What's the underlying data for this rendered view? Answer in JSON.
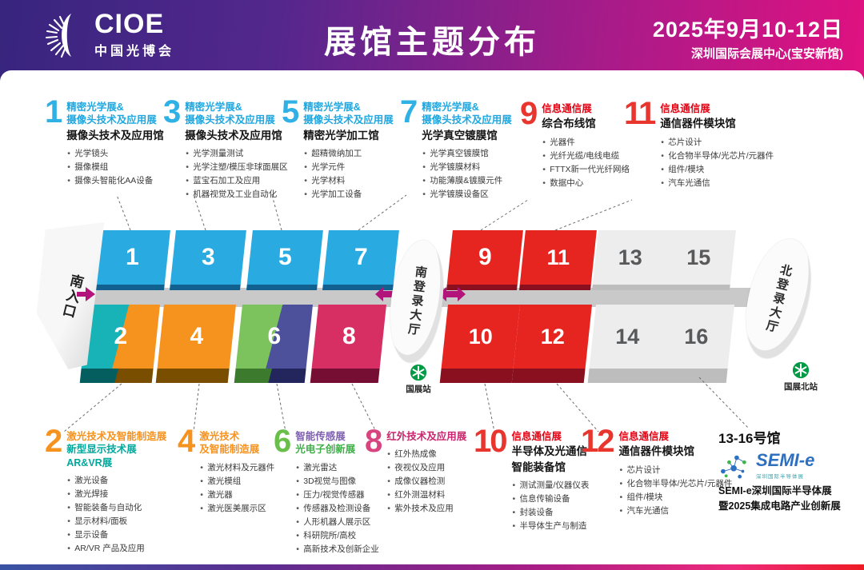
{
  "header": {
    "logo": {
      "brand": "CIOE",
      "brand_cn": "中国光博会"
    },
    "title": "展馆主题分布",
    "date": "2025年9月10-12日",
    "venue": "深圳国际会展中心(宝安新馆)"
  },
  "sections": {
    "top": [
      {
        "num": "1",
        "num_color": "#2fb1e5",
        "header_lines": [
          {
            "text": "精密光学展&",
            "color": "#1ea7e0"
          },
          {
            "text": "摄像头技术及应用展",
            "color": "#1ea7e0"
          }
        ],
        "hall_lines": [
          "摄像头技术及应用馆"
        ],
        "bullets": [
          "光学镜头",
          "摄像模组",
          "摄像头智能化AA设备"
        ]
      },
      {
        "num": "3",
        "num_color": "#2fb1e5",
        "header_lines": [
          {
            "text": "精密光学展&",
            "color": "#1ea7e0"
          },
          {
            "text": "摄像头技术及应用展",
            "color": "#1ea7e0"
          }
        ],
        "hall_lines": [
          "摄像头技术及应用馆"
        ],
        "bullets": [
          "光学测量测试",
          "光学注塑/模压非球面展区",
          "蓝宝石加工及应用",
          "机器视觉及工业自动化"
        ]
      },
      {
        "num": "5",
        "num_color": "#2fb1e5",
        "header_lines": [
          {
            "text": "精密光学展&",
            "color": "#1ea7e0"
          },
          {
            "text": "摄像头技术及应用展",
            "color": "#1ea7e0"
          }
        ],
        "hall_lines": [
          "精密光学加工馆"
        ],
        "bullets": [
          "超精微纳加工",
          "光学元件",
          "光学材料",
          "光学加工设备"
        ]
      },
      {
        "num": "7",
        "num_color": "#2fb1e5",
        "header_lines": [
          {
            "text": "精密光学展&",
            "color": "#1ea7e0"
          },
          {
            "text": "摄像头技术及应用展",
            "color": "#1ea7e0"
          }
        ],
        "hall_lines": [
          "光学真空镀膜馆"
        ],
        "bullets": [
          "光学真空镀膜馆",
          "光学镀膜材料",
          "功能薄膜&镀膜元件",
          "光学镀膜设备区"
        ]
      },
      {
        "num": "9",
        "num_color": "#e8352e",
        "header_lines": [
          {
            "text": "信息通信展",
            "color": "#e60012"
          }
        ],
        "hall_lines": [
          "综合布线馆"
        ],
        "bullets": [
          "光器件",
          "光纤光缆/电线电缆",
          "FTTX新一代光纤网络",
          "数据中心"
        ]
      },
      {
        "num": "11",
        "num_color": "#e8352e",
        "header_lines": [
          {
            "text": "信息通信展",
            "color": "#e60012"
          }
        ],
        "hall_lines": [
          "通信器件模块馆"
        ],
        "bullets": [
          "芯片设计",
          "化合物半导体/光芯片/元器件",
          "组件/模块",
          "汽车光通信"
        ]
      }
    ],
    "bottom": [
      {
        "num": "2",
        "num_color": "#f6921e",
        "header_lines": [
          {
            "text": "激光技术及智能制造展",
            "color": "#f6921e"
          },
          {
            "text": "新型显示技术展",
            "color": "#00a99d"
          },
          {
            "text": "AR&VR展",
            "color": "#00a99d"
          }
        ],
        "hall_lines": [],
        "bullets": [
          "激光设备",
          "激光焊接",
          "智能装备与自动化",
          "显示材料/面板",
          "显示设备",
          "AR/VR 产品及应用"
        ]
      },
      {
        "num": "4",
        "num_color": "#f6921e",
        "header_lines": [
          {
            "text": "激光技术",
            "color": "#f6921e"
          },
          {
            "text": "及智能制造展",
            "color": "#f6921e"
          }
        ],
        "hall_lines": [],
        "bullets": [
          "激光材料及元器件",
          "激光模组",
          "激光器",
          "激光医美展示区"
        ]
      },
      {
        "num": "6",
        "num_color": "#6abf4b",
        "header_lines": [
          {
            "text": "智能传感展",
            "color": "#7d5fae"
          },
          {
            "text": "光电子创新展",
            "color": "#3fae49"
          }
        ],
        "hall_lines": [],
        "bullets": [
          "激光雷达",
          "3D视觉与图像",
          "压力/视觉传感器",
          "传感器及检测设备",
          "人形机器人展示区",
          "科研院所/高校",
          "高新技术及创新企业"
        ]
      },
      {
        "num": "8",
        "num_color": "#d8447e",
        "header_lines": [
          {
            "text": "红外技术及应用展",
            "color": "#c9256e"
          }
        ],
        "hall_lines": [],
        "bullets": [
          "红外热成像",
          "夜视仪及应用",
          "成像仪器检测",
          "红外测温材料",
          "紫外技术及应用"
        ]
      },
      {
        "num": "10",
        "num_color": "#e8352e",
        "header_lines": [
          {
            "text": "信息通信展",
            "color": "#e60012"
          }
        ],
        "hall_lines": [
          "半导体及光通信",
          "智能装备馆"
        ],
        "bullets": [
          "测试测量/仪器仪表",
          "信息传输设备",
          "封装设备",
          "半导体生产与制造"
        ]
      },
      {
        "num": "12",
        "num_color": "#e8352e",
        "header_lines": [
          {
            "text": "信息通信展",
            "color": "#e60012"
          }
        ],
        "hall_lines": [
          "通信器件模块馆"
        ],
        "bullets": [
          "芯片设计",
          "化合物半导体/光芯片/元器件",
          "组件/模块",
          "汽车光通信"
        ]
      }
    ]
  },
  "semi_block": {
    "title": "13-16号馆",
    "logo_text": "SEMI-e",
    "logo_sub": "深圳国际半导体展",
    "line1": "SEMI-e深圳国际半导体展",
    "line2": "暨2025集成电路产业创新展"
  },
  "map": {
    "south_entrance_label": "南入口",
    "south_lobby_label": "南登录大厅",
    "north_lobby_label": "北登录大厅",
    "south_station_label": "国展站",
    "north_station_label": "国展北站",
    "arrow_color": "#b2147b",
    "halls": [
      {
        "num": "1",
        "row": "top",
        "fill": "#29abe2",
        "side": "#11608f"
      },
      {
        "num": "3",
        "row": "top",
        "fill": "#29abe2",
        "side": "#11608f"
      },
      {
        "num": "5",
        "row": "top",
        "fill": "#29abe2",
        "side": "#11608f"
      },
      {
        "num": "7",
        "row": "top",
        "fill": "#29abe2",
        "side": "#11608f"
      },
      {
        "num": "9",
        "row": "top",
        "fill": "#e62420",
        "side": "#8a0f1f"
      },
      {
        "num": "11",
        "row": "top",
        "fill": "#e62420",
        "side": "#8a0f1f"
      },
      {
        "num": "13",
        "row": "top",
        "fill": "#ededed",
        "side": "#bdbdbd",
        "text": "#58595b"
      },
      {
        "num": "15",
        "row": "top",
        "fill": "#ededed",
        "side": "#bdbdbd",
        "text": "#58595b"
      },
      {
        "num": "2",
        "row": "bottom",
        "fill_split": [
          "#17b3b6",
          "#f6921e"
        ],
        "side_split": [
          "#045e60",
          "#7a4e00"
        ]
      },
      {
        "num": "4",
        "row": "bottom",
        "fill": "#f6921e",
        "side": "#7a4e00"
      },
      {
        "num": "6",
        "row": "bottom",
        "fill_split": [
          "#7cc25d",
          "#4d519b"
        ],
        "side_split": [
          "#3c7a2e",
          "#23265c"
        ]
      },
      {
        "num": "8",
        "row": "bottom",
        "fill": "#d72e63",
        "side": "#750e32"
      },
      {
        "num": "10",
        "row": "bottom",
        "fill": "#e62420",
        "side": "#8a0f1f"
      },
      {
        "num": "12",
        "row": "bottom",
        "fill": "#e62420",
        "side": "#8a0f1f"
      },
      {
        "num": "14",
        "row": "bottom",
        "fill": "#ededed",
        "side": "#bdbdbd",
        "text": "#58595b"
      },
      {
        "num": "16",
        "row": "bottom",
        "fill": "#ededed",
        "side": "#bdbdbd",
        "text": "#58595b"
      }
    ]
  }
}
